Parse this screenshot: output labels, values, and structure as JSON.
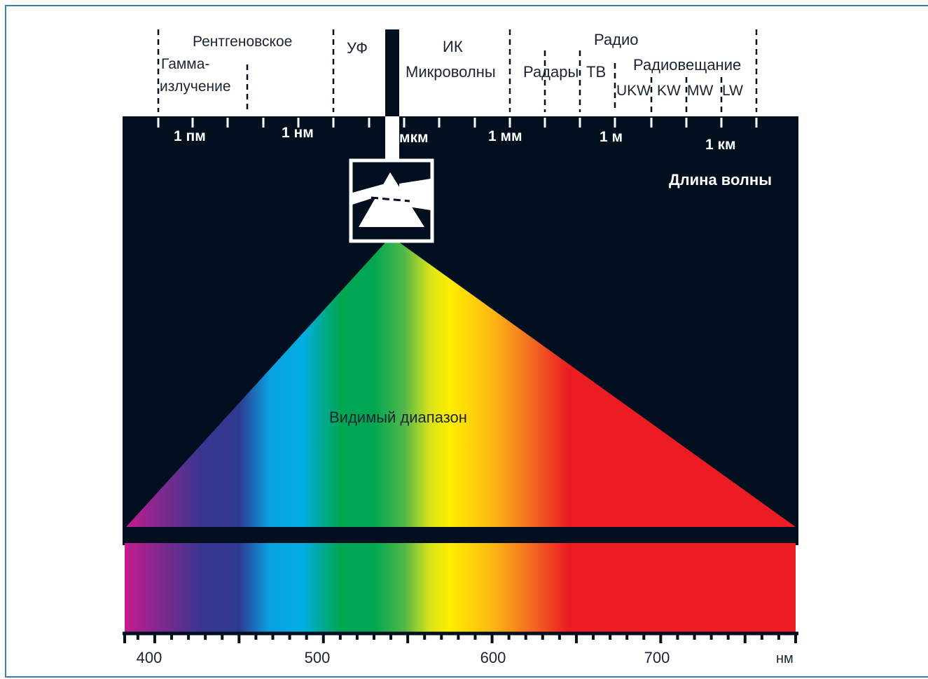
{
  "colors": {
    "frame": "#3a7fae",
    "panel": "#020f1e",
    "text_dark": "#1b2433",
    "text_light": "#ffffff"
  },
  "bands": {
    "gamma_line1": "Гамма-",
    "gamma_line2": "излучение",
    "xray": "Рентгеновское",
    "uv": "УФ",
    "ir": "ИК",
    "microwave": "Микроволны",
    "radio": "Радио",
    "radar": "Радары",
    "tv": "ТВ",
    "broadcast": "Радиовещание",
    "ukw": "UKW",
    "kw": "KW",
    "mw": "MW",
    "lw": "LW"
  },
  "wavelength_scale": {
    "pm": "1 пм",
    "nm": "1 нм",
    "um": "мкм",
    "mm": "1 мм",
    "m": "1 м",
    "km": "1 км",
    "caption": "Длина волны"
  },
  "visible_label": "Видимый диапазон",
  "nm_axis": {
    "ticks": [
      "400",
      "500",
      "600",
      "700"
    ],
    "unit": "нм"
  },
  "spectrum_stops": [
    {
      "nm": 383,
      "color": "#c21c8e"
    },
    {
      "nm": 405,
      "color": "#7a2a8e"
    },
    {
      "nm": 428,
      "color": "#3a3590"
    },
    {
      "nm": 450,
      "color": "#2e3a90"
    },
    {
      "nm": 468,
      "color": "#0aa0e2"
    },
    {
      "nm": 488,
      "color": "#00aee0"
    },
    {
      "nm": 510,
      "color": "#00a651"
    },
    {
      "nm": 530,
      "color": "#00a651"
    },
    {
      "nm": 548,
      "color": "#52b848"
    },
    {
      "nm": 563,
      "color": "#d8e21b"
    },
    {
      "nm": 575,
      "color": "#ffee00"
    },
    {
      "nm": 600,
      "color": "#fdb813"
    },
    {
      "nm": 625,
      "color": "#f26522"
    },
    {
      "nm": 645,
      "color": "#ec1c24"
    },
    {
      "nm": 780,
      "color": "#ec1c24"
    }
  ]
}
